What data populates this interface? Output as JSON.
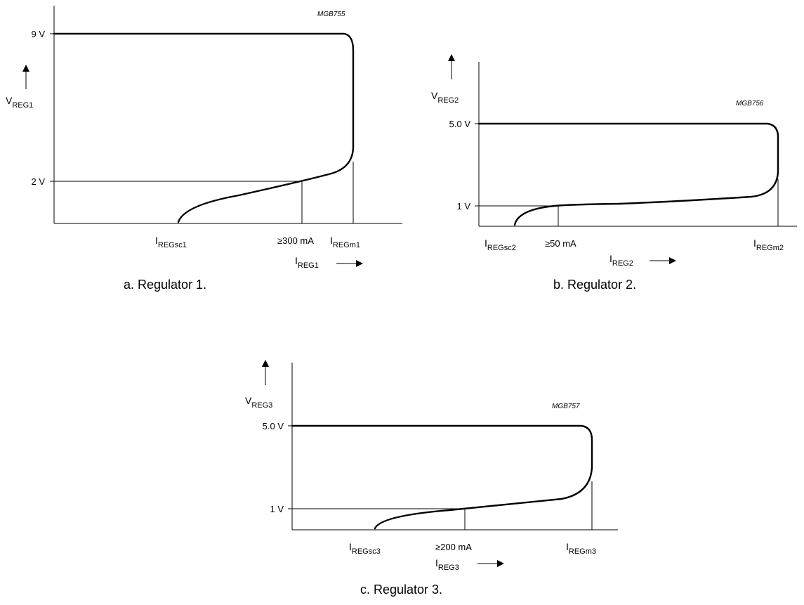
{
  "chart_data": [
    {
      "type": "line",
      "caption": "a.  Regulator 1.",
      "code": "MGB755",
      "ylabel": {
        "main": "V",
        "sub": "REG1"
      },
      "xlabel": {
        "main": "I",
        "sub": "REG1"
      },
      "y_ticks": [
        "9 V",
        "2 V"
      ],
      "x_ticks": [
        {
          "main": "I",
          "sub": "REGsc1"
        },
        {
          "main": "≥300 mA",
          "sub": ""
        },
        {
          "main": "I",
          "sub": "REGm1"
        }
      ],
      "series": [
        {
          "values_described": "foldback current limit characteristic: output stays at 9 V up to the max current, then folds back through the ≥300 mA / 2 V point down to the short-circuit current"
        }
      ]
    },
    {
      "type": "line",
      "caption": "b.  Regulator 2.",
      "code": "MGB756",
      "ylabel": {
        "main": "V",
        "sub": "REG2"
      },
      "xlabel": {
        "main": "I",
        "sub": "REG2"
      },
      "y_ticks": [
        "5.0 V",
        "1 V"
      ],
      "x_ticks": [
        {
          "main": "I",
          "sub": "REGsc2"
        },
        {
          "main": "≥50 mA",
          "sub": ""
        },
        {
          "main": "I",
          "sub": "REGm2"
        }
      ],
      "series": [
        {
          "values_described": "foldback current limit characteristic: output stays at 5.0 V up to the max current, then folds back through the ≥50 mA / 1 V point down to the short-circuit current"
        }
      ]
    },
    {
      "type": "line",
      "caption": "c.  Regulator 3.",
      "code": "MGB757",
      "ylabel": {
        "main": "V",
        "sub": "REG3"
      },
      "xlabel": {
        "main": "I",
        "sub": "REG3"
      },
      "y_ticks": [
        "5.0 V",
        "1 V"
      ],
      "x_ticks": [
        {
          "main": "I",
          "sub": "REGsc3"
        },
        {
          "main": "≥200 mA",
          "sub": ""
        },
        {
          "main": "I",
          "sub": "REGm3"
        }
      ],
      "series": [
        {
          "values_described": "foldback current limit characteristic: output stays at 5.0 V up to the max current, then folds back through the ≥200 mA / 1 V point down to the short-circuit current"
        }
      ]
    }
  ]
}
